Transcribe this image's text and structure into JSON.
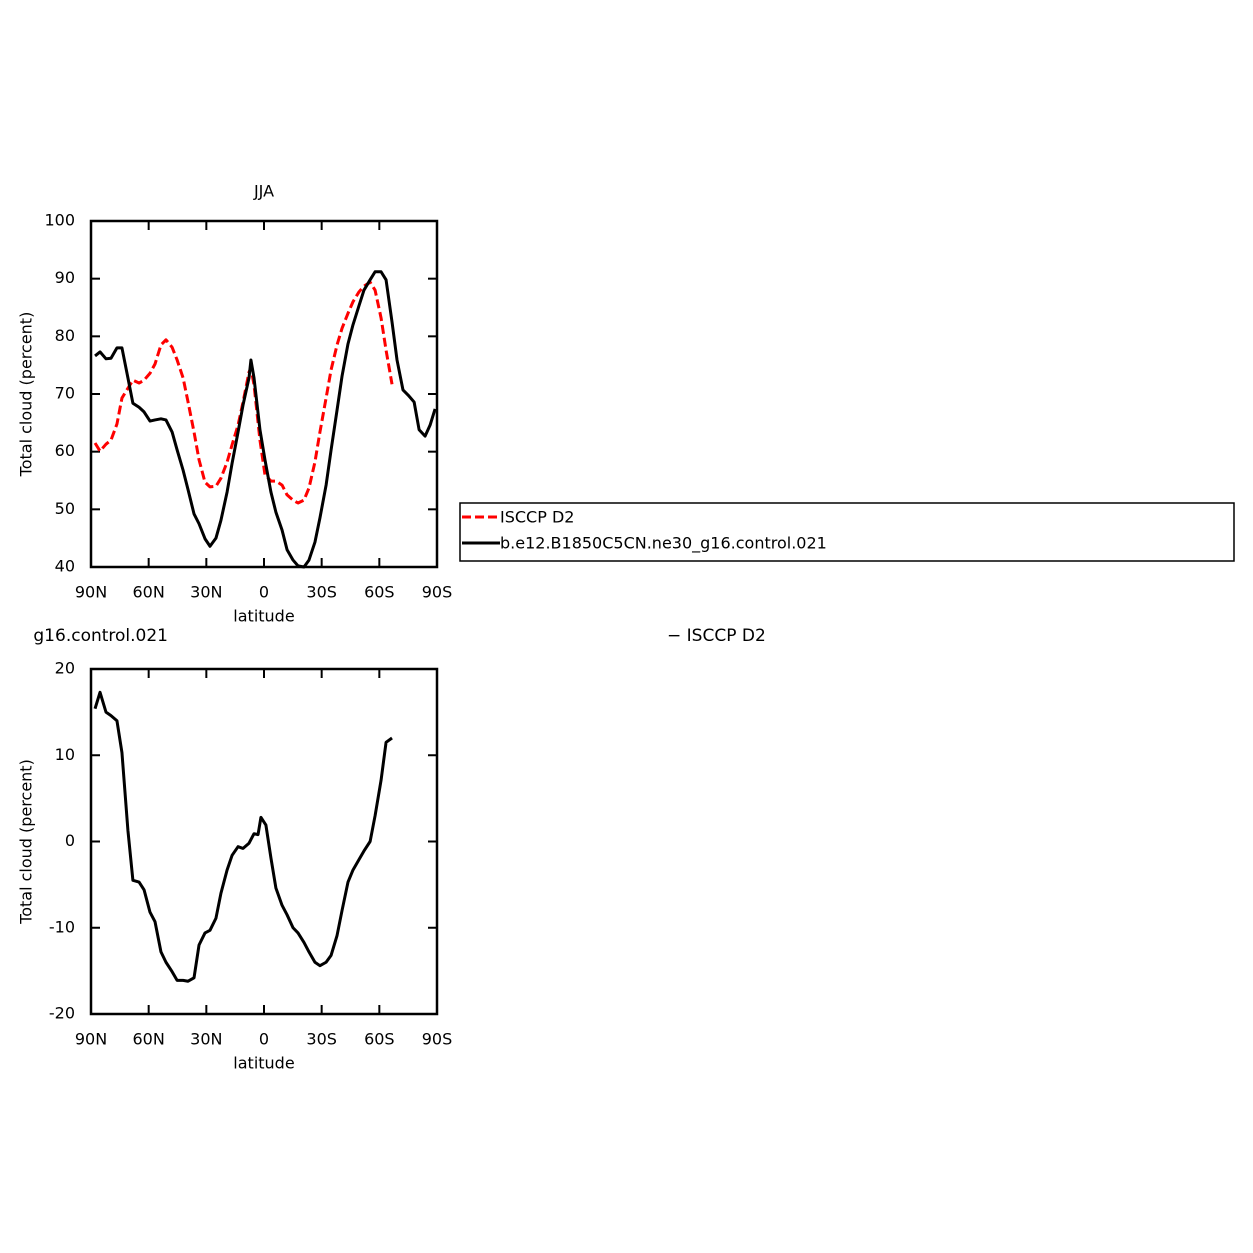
{
  "chart_data": [
    {
      "type": "line",
      "title": "JJA",
      "xlabel": "latitude",
      "ylabel": "Total cloud (percent)",
      "xlim": [
        90,
        -90
      ],
      "ylim": [
        40,
        100
      ],
      "xticks": [
        {
          "value": 90,
          "label": "90N"
        },
        {
          "value": 60,
          "label": "60N"
        },
        {
          "value": 30,
          "label": "30N"
        },
        0,
        {
          "value": -30,
          "label": "30S"
        },
        {
          "value": -60,
          "label": "60S"
        },
        {
          "value": -90,
          "label": "90S"
        }
      ],
      "yticks": [
        40,
        50,
        60,
        70,
        80,
        90,
        100
      ],
      "x": [
        87.9,
        85.3,
        82.2,
        79.6,
        76.5,
        73.9,
        70.8,
        68.2,
        65.0,
        62.4,
        59.3,
        56.7,
        53.6,
        51.0,
        47.8,
        45.2,
        42.1,
        39.5,
        36.4,
        33.8,
        30.7,
        28.1,
        25.0,
        22.4,
        19.2,
        16.6,
        13.5,
        10.9,
        7.8,
        6.8,
        5.2,
        2.1,
        -0.5,
        -3.6,
        -6.2,
        -9.4,
        -12.0,
        -15.1,
        -17.7,
        -20.8,
        -23.4,
        -26.5,
        -29.1,
        -32.3,
        -34.9,
        -38.0,
        -40.6,
        -43.7,
        -46.3,
        -49.4,
        -52.0,
        -55.2,
        -57.8,
        -60.9,
        -63.5,
        -66.6,
        -69.2,
        -72.3,
        -75.0,
        -78.1,
        -80.7,
        -83.8,
        -86.4,
        -89.0
      ],
      "series": [
        {
          "name": "ISCCP D2",
          "color": "#ff0000",
          "style": "dashed",
          "values": [
            61.5,
            60.1,
            61.3,
            62,
            64.8,
            69.3,
            71,
            72.4,
            71.9,
            72.4,
            73.6,
            75.2,
            78.5,
            79.4,
            78.1,
            75.9,
            72.8,
            68.6,
            63.4,
            58.6,
            54.7,
            53.9,
            54,
            55.4,
            58.2,
            61.2,
            64.6,
            68.6,
            73.8,
            74.5,
            71.6,
            62,
            56,
            54.9,
            54.9,
            54.2,
            52.5,
            51.6,
            51.1,
            51.6,
            53.7,
            58.2,
            63.4,
            69.3,
            74.2,
            78.5,
            81.4,
            84,
            86,
            87.7,
            88.7,
            89.4,
            88,
            83.2,
            77.6,
            71.7,
            null,
            null,
            null,
            null,
            null,
            null,
            null,
            null
          ]
        },
        {
          "name": "b.e12.B1850C5CN.ne30_g16.control.021",
          "color": "#000000",
          "style": "solid",
          "values": [
            76.6,
            77.3,
            76.1,
            76.2,
            78,
            78,
            72.8,
            68.4,
            67.7,
            66.9,
            65.3,
            65.5,
            65.7,
            65.5,
            63.4,
            60.3,
            56.8,
            53.4,
            49.2,
            47.5,
            44.9,
            43.6,
            45.0,
            48.1,
            53.0,
            58.0,
            63.4,
            68.1,
            72.8,
            75.9,
            72.8,
            63.8,
            58.6,
            53,
            49.5,
            46.4,
            43,
            41.2,
            40.2,
            40,
            41.2,
            44.3,
            48.5,
            54.2,
            60.3,
            67.2,
            73.1,
            78.7,
            82,
            85.3,
            88,
            89.8,
            91.2,
            91.2,
            89.8,
            82.5,
            75.9,
            70.7,
            69.8,
            68.6,
            63.8,
            62.7,
            64.6,
            67.4
          ]
        }
      ]
    },
    {
      "type": "line",
      "title_parts": [
        "g16.control.021",
        "− ISCCP D2"
      ],
      "xlabel": "latitude",
      "ylabel": "Total cloud (percent)",
      "xlim": [
        90,
        -90
      ],
      "ylim": [
        -20,
        20
      ],
      "xticks": [
        {
          "value": 90,
          "label": "90N"
        },
        {
          "value": 60,
          "label": "60N"
        },
        {
          "value": 30,
          "label": "30N"
        },
        0,
        {
          "value": -30,
          "label": "30S"
        },
        {
          "value": -60,
          "label": "60S"
        },
        {
          "value": -90,
          "label": "90S"
        }
      ],
      "yticks": [
        -20,
        -10,
        0,
        10,
        20
      ],
      "x": [
        87.9,
        85.3,
        82.2,
        79.6,
        76.5,
        73.9,
        70.8,
        68.2,
        65.0,
        62.4,
        59.3,
        56.7,
        53.6,
        51.0,
        47.8,
        45.2,
        42.1,
        39.5,
        36.4,
        33.8,
        30.7,
        28.1,
        25.0,
        22.4,
        19.2,
        16.6,
        13.5,
        10.9,
        7.8,
        5.2,
        3.1,
        1.6,
        -1.0,
        -3.6,
        -6.2,
        -9.4,
        -12.0,
        -15.1,
        -17.7,
        -20.8,
        -23.4,
        -26.5,
        -29.1,
        -32.3,
        -34.9,
        -38.0,
        -40.6,
        -43.7,
        -46.3,
        -49.4,
        -52.0,
        -55.2,
        -57.8,
        -60.9,
        -63.5,
        -66.6
      ],
      "series": [
        {
          "color": "#000000",
          "style": "solid",
          "values": [
            15.4,
            17.3,
            15,
            14.6,
            14,
            10.3,
            1.3,
            -4.5,
            -4.7,
            -5.6,
            -8.2,
            -9.3,
            -12.8,
            -14,
            -15.1,
            -16.1,
            -16.1,
            -16.2,
            -15.8,
            -12,
            -10.6,
            -10.3,
            -8.9,
            -6,
            -3.3,
            -1.6,
            -0.6,
            -0.8,
            -0.2,
            0.9,
            0.8,
            2.8,
            1.9,
            -1.9,
            -5.4,
            -7.4,
            -8.5,
            -10,
            -10.6,
            -11.7,
            -12.8,
            -14,
            -14.4,
            -14,
            -13.2,
            -10.9,
            -8,
            -4.7,
            -3.3,
            -2.1,
            -1.1,
            0,
            3,
            7.1,
            11.5,
            12
          ]
        }
      ]
    }
  ]
}
